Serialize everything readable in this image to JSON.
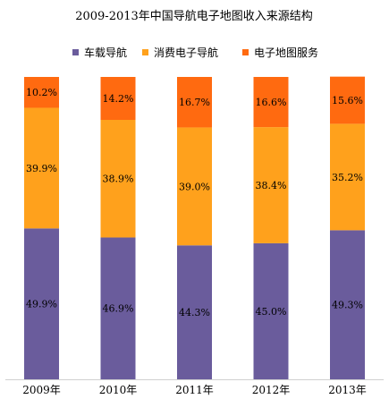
{
  "chart_data": {
    "type": "bar",
    "stacked": true,
    "title": "2009-2013年中国导航电子地图收入来源结构",
    "xlabel": "",
    "ylabel": "",
    "ylim": [
      0,
      100
    ],
    "grid": false,
    "legend_position": "top",
    "categories": [
      "2009年",
      "2010年",
      "2011年",
      "2012年",
      "2013年"
    ],
    "series": [
      {
        "name": "车载导航",
        "color": "#6a5c9c",
        "values": [
          49.9,
          46.9,
          44.3,
          45.0,
          49.3
        ],
        "labels": [
          "49.9%",
          "46.9%",
          "44.3%",
          "45.0%",
          "49.3%"
        ]
      },
      {
        "name": "消费电子导航",
        "color": "#ffa11c",
        "values": [
          39.9,
          38.9,
          39.0,
          38.4,
          35.2
        ],
        "labels": [
          "39.9%",
          "38.9%",
          "39.0%",
          "38.4%",
          "35.2%"
        ]
      },
      {
        "name": "电子地图服务",
        "color": "#ff6a10",
        "values": [
          10.2,
          14.2,
          16.7,
          16.6,
          15.6
        ],
        "labels": [
          "10.2%",
          "14.2%",
          "16.7%",
          "16.6%",
          "15.6%"
        ]
      }
    ]
  }
}
